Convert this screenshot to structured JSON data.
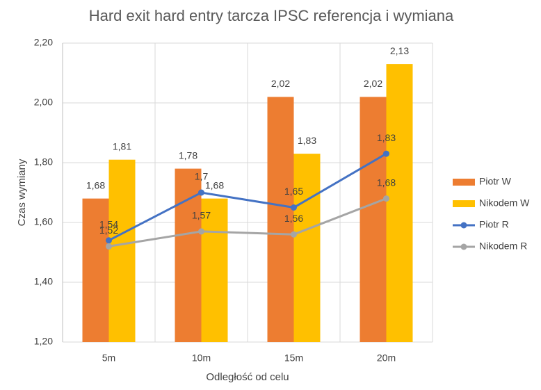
{
  "chart_data": {
    "type": "combo",
    "title": "Hard exit hard entry tarcza IPSC referencja i wymiana",
    "x_label": "Odległość od celu",
    "y_label": "Czas wymiany",
    "categories": [
      "5m",
      "10m",
      "15m",
      "20m"
    ],
    "ylim": [
      1.2,
      2.2
    ],
    "yticks": [
      {
        "value": 1.2,
        "label": "1,20"
      },
      {
        "value": 1.4,
        "label": "1,40"
      },
      {
        "value": 1.6,
        "label": "1,60"
      },
      {
        "value": 1.8,
        "label": "1,80"
      },
      {
        "value": 2.0,
        "label": "2,00"
      },
      {
        "value": 2.2,
        "label": "2,20"
      }
    ],
    "grid": true,
    "legend": "right",
    "series": [
      {
        "name": "Piotr W",
        "type": "bar",
        "color": "#ed7d31",
        "values": [
          1.68,
          1.78,
          2.02,
          2.02
        ],
        "value_labels": [
          "1,68",
          "1,78",
          "2,02",
          "2,02"
        ]
      },
      {
        "name": "Nikodem W",
        "type": "bar",
        "color": "#ffc000",
        "values": [
          1.81,
          1.68,
          1.83,
          2.13
        ],
        "value_labels": [
          "1,81",
          "1,68",
          "1,83",
          "2,13"
        ]
      },
      {
        "name": "Piotr R",
        "type": "line",
        "color": "#4472c4",
        "values": [
          1.54,
          1.7,
          1.65,
          1.83
        ],
        "value_labels": [
          "1,54",
          "1,7",
          "1,65",
          "1,83"
        ]
      },
      {
        "name": "Nikodem R",
        "type": "line",
        "color": "#a5a5a5",
        "values": [
          1.52,
          1.57,
          1.56,
          1.68
        ],
        "value_labels": [
          "1,52",
          "1,57",
          "1,56",
          "1,68"
        ]
      }
    ]
  }
}
